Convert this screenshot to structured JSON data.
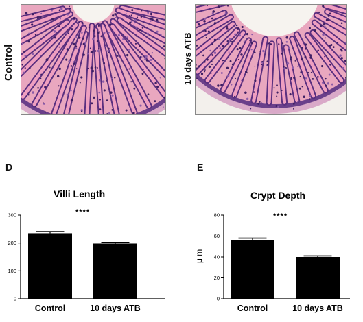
{
  "images": {
    "left_label": "Control",
    "right_label": "10 days ATB"
  },
  "panels": {
    "d": "D",
    "e": "E"
  },
  "chart_data": [
    {
      "type": "bar",
      "panel": "D",
      "title": "Villi Length",
      "ylabel": "",
      "categories": [
        "Control",
        "10 days ATB"
      ],
      "values": [
        235,
        198
      ],
      "errors": [
        6,
        4
      ],
      "ylim": [
        0,
        300
      ],
      "yticks": [
        0,
        100,
        200,
        300
      ],
      "significance": "****",
      "colors": {
        "bar": "#000000",
        "axis": "#000000"
      }
    },
    {
      "type": "bar",
      "panel": "E",
      "title": "Crypt Depth",
      "ylabel": "μ m",
      "categories": [
        "Control",
        "10 days ATB"
      ],
      "values": [
        56,
        40
      ],
      "errors": [
        2,
        1
      ],
      "ylim": [
        0,
        80
      ],
      "yticks": [
        0,
        20,
        40,
        60,
        80
      ],
      "significance": "****",
      "colors": {
        "bar": "#000000",
        "axis": "#000000"
      }
    }
  ]
}
